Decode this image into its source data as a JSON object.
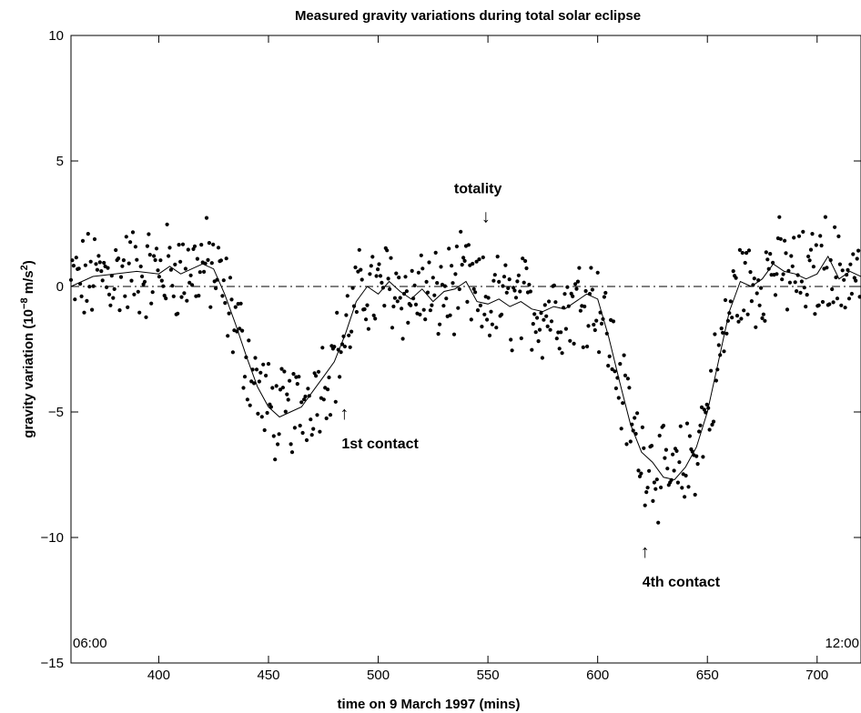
{
  "chart_data": {
    "type": "scatter",
    "title": "Measured gravity variations during total solar eclipse",
    "xlabel": "time on 9 March 1997 (mins)",
    "ylabel_main": "gravity variation (10",
    "ylabel_exp": "−8",
    "ylabel_unit": " m/s",
    "ylabel_sq": "2",
    "ylabel_close": ")",
    "xlim": [
      360,
      720
    ],
    "ylim": [
      -15,
      10
    ],
    "x_ticks": [
      400,
      450,
      500,
      550,
      600,
      650,
      700
    ],
    "x_tick_labels": [
      "400",
      "450",
      "500",
      "550",
      "600",
      "650",
      "700"
    ],
    "y_ticks": [
      -15,
      -10,
      -5,
      0,
      5,
      10
    ],
    "y_tick_labels": [
      "−15",
      "−10",
      "−5",
      "0",
      "5",
      "10"
    ],
    "grid": false,
    "reference_line": {
      "y": 0,
      "style": "dash-dot"
    },
    "corner_labels": {
      "left": "06:00",
      "right": "12:00"
    },
    "annotations": [
      {
        "text": "totality",
        "arrow": "↓",
        "x": 552,
        "y": 4.0,
        "arrow_dir": "down"
      },
      {
        "text": "1st contact",
        "arrow": "↑",
        "x": 485,
        "y": -5.0,
        "arrow_dir": "up"
      },
      {
        "text": "4th contact",
        "arrow": "↑",
        "x": 622,
        "y": -10.5,
        "arrow_dir": "up"
      }
    ],
    "smoothed_curve": {
      "x": [
        360,
        370,
        380,
        390,
        400,
        405,
        410,
        415,
        420,
        425,
        430,
        435,
        440,
        445,
        450,
        455,
        460,
        465,
        470,
        475,
        480,
        485,
        490,
        495,
        500,
        505,
        510,
        515,
        520,
        525,
        530,
        535,
        540,
        545,
        550,
        555,
        560,
        565,
        570,
        575,
        580,
        585,
        590,
        595,
        600,
        605,
        610,
        615,
        620,
        625,
        630,
        635,
        640,
        645,
        650,
        655,
        660,
        665,
        670,
        675,
        680,
        685,
        690,
        695,
        700,
        705,
        710,
        715,
        720
      ],
      "y": [
        0.0,
        0.4,
        0.5,
        0.6,
        0.5,
        0.8,
        0.5,
        0.7,
        0.9,
        0.7,
        -0.3,
        -1.5,
        -2.8,
        -4.0,
        -4.8,
        -5.2,
        -5.0,
        -4.8,
        -4.2,
        -3.6,
        -3.0,
        -1.9,
        -0.6,
        0.0,
        -0.3,
        0.2,
        -0.2,
        -0.5,
        -0.1,
        -0.6,
        -0.2,
        -0.1,
        0.2,
        -0.6,
        -0.7,
        -0.5,
        -0.8,
        -0.6,
        -0.9,
        -1.0,
        -0.8,
        -0.9,
        -0.6,
        -0.3,
        -0.5,
        -2.0,
        -3.8,
        -5.5,
        -6.6,
        -7.0,
        -7.6,
        -7.7,
        -7.2,
        -6.4,
        -5.0,
        -3.0,
        -1.0,
        0.2,
        0.0,
        0.3,
        0.9,
        0.6,
        0.5,
        0.3,
        0.5,
        1.2,
        0.3,
        0.6,
        0.4
      ]
    }
  }
}
